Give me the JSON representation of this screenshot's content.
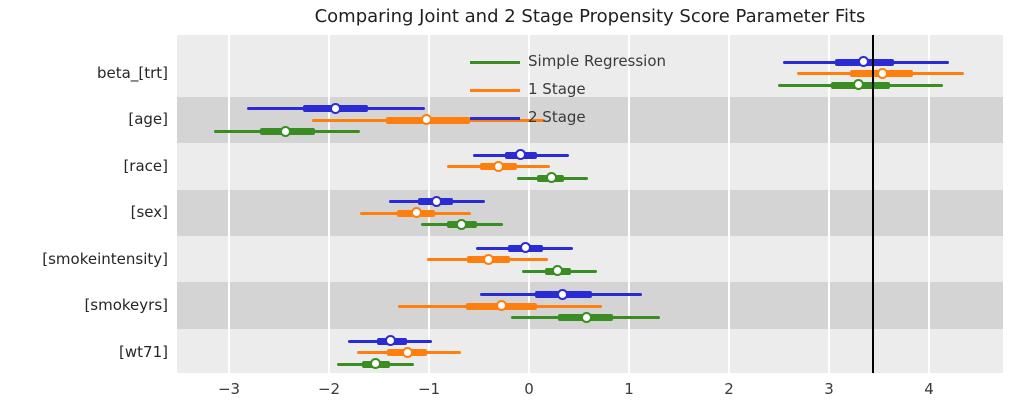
{
  "title": "Comparing Joint and 2 Stage Propensity Score Parameter Fits",
  "colors": {
    "figure_bg": "#ffffff",
    "plot_bg": "#ececec",
    "band_dark": "#d4d4d4",
    "gridline": "#ffffff",
    "reference_line": "#000000",
    "simple_regression": "#3a8d22",
    "one_stage": "#ff7f0e",
    "two_stage": "#2b2bd5"
  },
  "chart_data": {
    "type": "pointrange",
    "title": "Comparing Joint and 2 Stage Propensity Score Parameter Fits",
    "xlabel": "",
    "ylabel": "",
    "categories": [
      "beta_[trt]",
      "[age]",
      "[race]",
      "[sex]",
      "[smokeintensity]",
      "[smokeyrs]",
      "[wt71]"
    ],
    "x_ticks": [
      -3,
      -2,
      -1,
      0,
      1,
      2,
      3,
      4
    ],
    "x_tick_labels": [
      "−3",
      "−2",
      "−1",
      "0",
      "1",
      "2",
      "3",
      "4"
    ],
    "xlim": [
      -3.52,
      4.74
    ],
    "grid": "vertical-white",
    "alternating_row_shading": true,
    "reference_line_x": 3.44,
    "legend": {
      "position": "upper-center-inside",
      "entries": [
        {
          "label": "Simple Regression",
          "color": "#3a8d22"
        },
        {
          "label": "1 Stage",
          "color": "#ff7f0e"
        },
        {
          "label": "2 Stage",
          "color": "#2b2bd5"
        }
      ]
    },
    "series": [
      {
        "name": "2 Stage",
        "color": "#2b2bd5",
        "points": [
          {
            "category": "beta_[trt]",
            "lo": 2.54,
            "q1": 3.06,
            "mid": 3.35,
            "q3": 3.65,
            "hi": 4.2
          },
          {
            "category": "[age]",
            "lo": -2.82,
            "q1": -2.26,
            "mid": -1.93,
            "q3": -1.61,
            "hi": -1.04
          },
          {
            "category": "[race]",
            "lo": -0.56,
            "q1": -0.24,
            "mid": -0.08,
            "q3": 0.08,
            "hi": 0.4
          },
          {
            "category": "[sex]",
            "lo": -1.4,
            "q1": -1.11,
            "mid": -0.92,
            "q3": -0.76,
            "hi": -0.44
          },
          {
            "category": "[smokeintensity]",
            "lo": -0.53,
            "q1": -0.21,
            "mid": -0.03,
            "q3": 0.14,
            "hi": 0.44
          },
          {
            "category": "[smokeyrs]",
            "lo": -0.49,
            "q1": 0.06,
            "mid": 0.34,
            "q3": 0.63,
            "hi": 1.13
          },
          {
            "category": "[wt71]",
            "lo": -1.81,
            "q1": -1.52,
            "mid": -1.38,
            "q3": -1.22,
            "hi": -0.97
          }
        ]
      },
      {
        "name": "1 Stage",
        "color": "#ff7f0e",
        "points": [
          {
            "category": "beta_[trt]",
            "lo": 2.68,
            "q1": 3.21,
            "mid": 3.54,
            "q3": 3.84,
            "hi": 4.35
          },
          {
            "category": "[age]",
            "lo": -2.17,
            "q1": -1.43,
            "mid": -1.02,
            "q3": -0.59,
            "hi": 0.16
          },
          {
            "category": "[race]",
            "lo": -0.82,
            "q1": -0.49,
            "mid": -0.3,
            "q3": -0.12,
            "hi": 0.21
          },
          {
            "category": "[sex]",
            "lo": -1.69,
            "q1": -1.32,
            "mid": -1.12,
            "q3": -0.94,
            "hi": -0.58
          },
          {
            "category": "[smokeintensity]",
            "lo": -1.02,
            "q1": -0.62,
            "mid": -0.4,
            "q3": -0.19,
            "hi": 0.19
          },
          {
            "category": "[smokeyrs]",
            "lo": -1.31,
            "q1": -0.63,
            "mid": -0.27,
            "q3": 0.08,
            "hi": 0.73
          },
          {
            "category": "[wt71]",
            "lo": -1.72,
            "q1": -1.42,
            "mid": -1.21,
            "q3": -1.02,
            "hi": -0.68
          }
        ]
      },
      {
        "name": "Simple Regression",
        "color": "#3a8d22",
        "points": [
          {
            "category": "beta_[trt]",
            "lo": 2.49,
            "q1": 3.02,
            "mid": 3.3,
            "q3": 3.61,
            "hi": 4.14
          },
          {
            "category": "[age]",
            "lo": -3.15,
            "q1": -2.69,
            "mid": -2.43,
            "q3": -2.14,
            "hi": -1.69
          },
          {
            "category": "[race]",
            "lo": -0.12,
            "q1": 0.08,
            "mid": 0.23,
            "q3": 0.35,
            "hi": 0.59
          },
          {
            "category": "[sex]",
            "lo": -1.08,
            "q1": -0.82,
            "mid": -0.67,
            "q3": -0.52,
            "hi": -0.26
          },
          {
            "category": "[smokeintensity]",
            "lo": -0.07,
            "q1": 0.16,
            "mid": 0.29,
            "q3": 0.42,
            "hi": 0.68
          },
          {
            "category": "[smokeyrs]",
            "lo": -0.18,
            "q1": 0.29,
            "mid": 0.58,
            "q3": 0.84,
            "hi": 1.31
          },
          {
            "category": "[wt71]",
            "lo": -1.92,
            "q1": -1.67,
            "mid": -1.53,
            "q3": -1.39,
            "hi": -1.15
          }
        ]
      }
    ]
  }
}
